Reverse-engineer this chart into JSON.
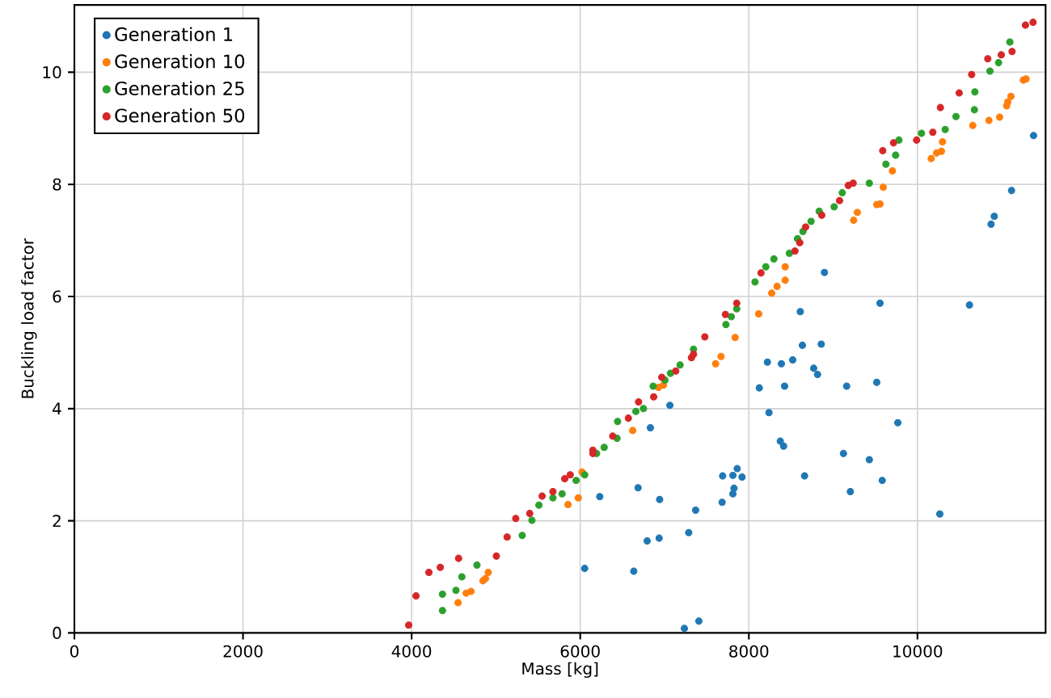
{
  "chart_data": {
    "type": "scatter",
    "xlabel": "Mass [kg]",
    "ylabel": "Buckling load factor",
    "xlim": [
      0,
      11520
    ],
    "ylim": [
      0,
      11.2
    ],
    "xticks": [
      0,
      2000,
      4000,
      6000,
      8000,
      10000
    ],
    "yticks": [
      0,
      2,
      4,
      6,
      8,
      10
    ],
    "grid": true,
    "legend": "top left",
    "marker": "circle",
    "series": [
      {
        "name": "Generation 1",
        "color": "#1f77b4",
        "x": [
          6053,
          6232,
          6635,
          6686,
          6794,
          6832,
          6936,
          6942,
          7063,
          7235,
          7287,
          7369,
          7407,
          7683,
          7689,
          7811,
          7811,
          7824,
          7862,
          7919,
          8124,
          8220,
          8239,
          8373,
          8386,
          8412,
          8424,
          8520,
          8610,
          8635,
          8661,
          8769,
          8815,
          8859,
          8897,
          9122,
          9160,
          9204,
          9429,
          9517,
          9556,
          9582,
          9767,
          10265,
          10617,
          10873,
          10911,
          11116,
          11377
        ],
        "values": [
          1.15,
          2.43,
          1.1,
          2.59,
          1.64,
          3.66,
          1.69,
          2.38,
          4.06,
          0.08,
          1.79,
          2.19,
          0.21,
          2.33,
          2.8,
          2.81,
          2.48,
          2.58,
          2.93,
          2.78,
          4.37,
          4.83,
          3.93,
          3.42,
          4.8,
          3.33,
          4.4,
          4.87,
          5.73,
          5.13,
          2.8,
          4.72,
          4.61,
          5.15,
          6.43,
          3.2,
          4.4,
          2.52,
          3.09,
          4.47,
          5.88,
          2.72,
          3.75,
          2.12,
          5.85,
          7.29,
          7.43,
          7.89,
          8.87
        ]
      },
      {
        "name": "Generation 10",
        "color": "#ff7f0e",
        "x": [
          4551,
          4647,
          4705,
          4846,
          4877,
          4909,
          5855,
          5977,
          6021,
          6622,
          6928,
          6986,
          7120,
          7606,
          7670,
          7837,
          8117,
          8271,
          8335,
          8431,
          8431,
          8706,
          9243,
          9287,
          9517,
          9556,
          9594,
          9703,
          10163,
          10227,
          10284,
          10297,
          10656,
          10848,
          10974,
          11058,
          11071,
          11109,
          11256,
          11288
        ],
        "values": [
          0.54,
          0.71,
          0.74,
          0.93,
          0.97,
          1.08,
          2.29,
          2.41,
          2.87,
          3.61,
          4.38,
          4.42,
          null,
          4.8,
          4.93,
          5.27,
          5.69,
          6.06,
          6.18,
          6.29,
          6.53,
          null,
          7.36,
          7.5,
          7.64,
          7.65,
          7.95,
          8.24,
          8.46,
          8.56,
          8.59,
          8.76,
          9.05,
          9.14,
          9.2,
          9.4,
          9.47,
          9.57,
          9.86,
          9.88
        ]
      },
      {
        "name": "Generation 25",
        "color": "#2ca02c",
        "x": [
          4366,
          4366,
          4526,
          4596,
          4775,
          5312,
          5427,
          5510,
          5676,
          5785,
          5951,
          6053,
          6194,
          6284,
          6437,
          6443,
          6660,
          6750,
          6865,
          7005,
          7070,
          7184,
          7344,
          7728,
          7792,
          7856,
          8073,
          8201,
          8297,
          8481,
          8577,
          8642,
          8738,
          8834,
          9012,
          9108,
          9429,
          9626,
          9741,
          9780,
          10048,
          10329,
          10457,
          10675,
          10681,
          10860,
          10962,
          11096
        ],
        "values": [
          0.4,
          0.69,
          0.76,
          1.0,
          1.21,
          1.74,
          2.01,
          2.28,
          2.41,
          2.48,
          2.72,
          2.82,
          3.2,
          3.31,
          3.47,
          3.77,
          3.95,
          4.0,
          4.4,
          4.51,
          4.63,
          4.78,
          5.06,
          5.5,
          5.64,
          5.78,
          6.26,
          6.53,
          6.67,
          6.77,
          7.03,
          7.16,
          7.34,
          7.52,
          7.6,
          7.85,
          8.02,
          8.36,
          8.52,
          8.79,
          8.91,
          8.98,
          9.21,
          9.33,
          9.65,
          10.02,
          10.17,
          10.54
        ]
      },
      {
        "name": "Generation 50",
        "color": "#d62728",
        "x": [
          3965,
          4052,
          4205,
          4340,
          4557,
          5005,
          5133,
          5235,
          5401,
          5548,
          5676,
          5816,
          5881,
          6150,
          6150,
          6385,
          6571,
          6692,
          6871,
          6967,
          7133,
          7319,
          7344,
          7478,
          7722,
          7856,
          8144,
          8547,
          8604,
          8673,
          8865,
          9076,
          9179,
          9237,
          9588,
          9716,
          9990,
          10182,
          10272,
          10495,
          10643,
          10834,
          10994,
          11122,
          11281,
          11371
        ],
        "values": [
          0.14,
          0.66,
          1.08,
          1.17,
          1.33,
          1.37,
          1.71,
          2.04,
          2.13,
          2.44,
          2.52,
          2.75,
          2.82,
          3.26,
          3.2,
          3.51,
          3.83,
          4.12,
          4.21,
          4.56,
          4.67,
          4.91,
          4.97,
          5.28,
          5.68,
          5.88,
          6.42,
          6.81,
          6.96,
          7.24,
          7.45,
          7.71,
          7.98,
          8.02,
          8.6,
          8.74,
          8.79,
          8.93,
          9.37,
          9.63,
          9.96,
          10.24,
          10.31,
          10.37,
          10.84,
          10.89
        ]
      }
    ]
  }
}
